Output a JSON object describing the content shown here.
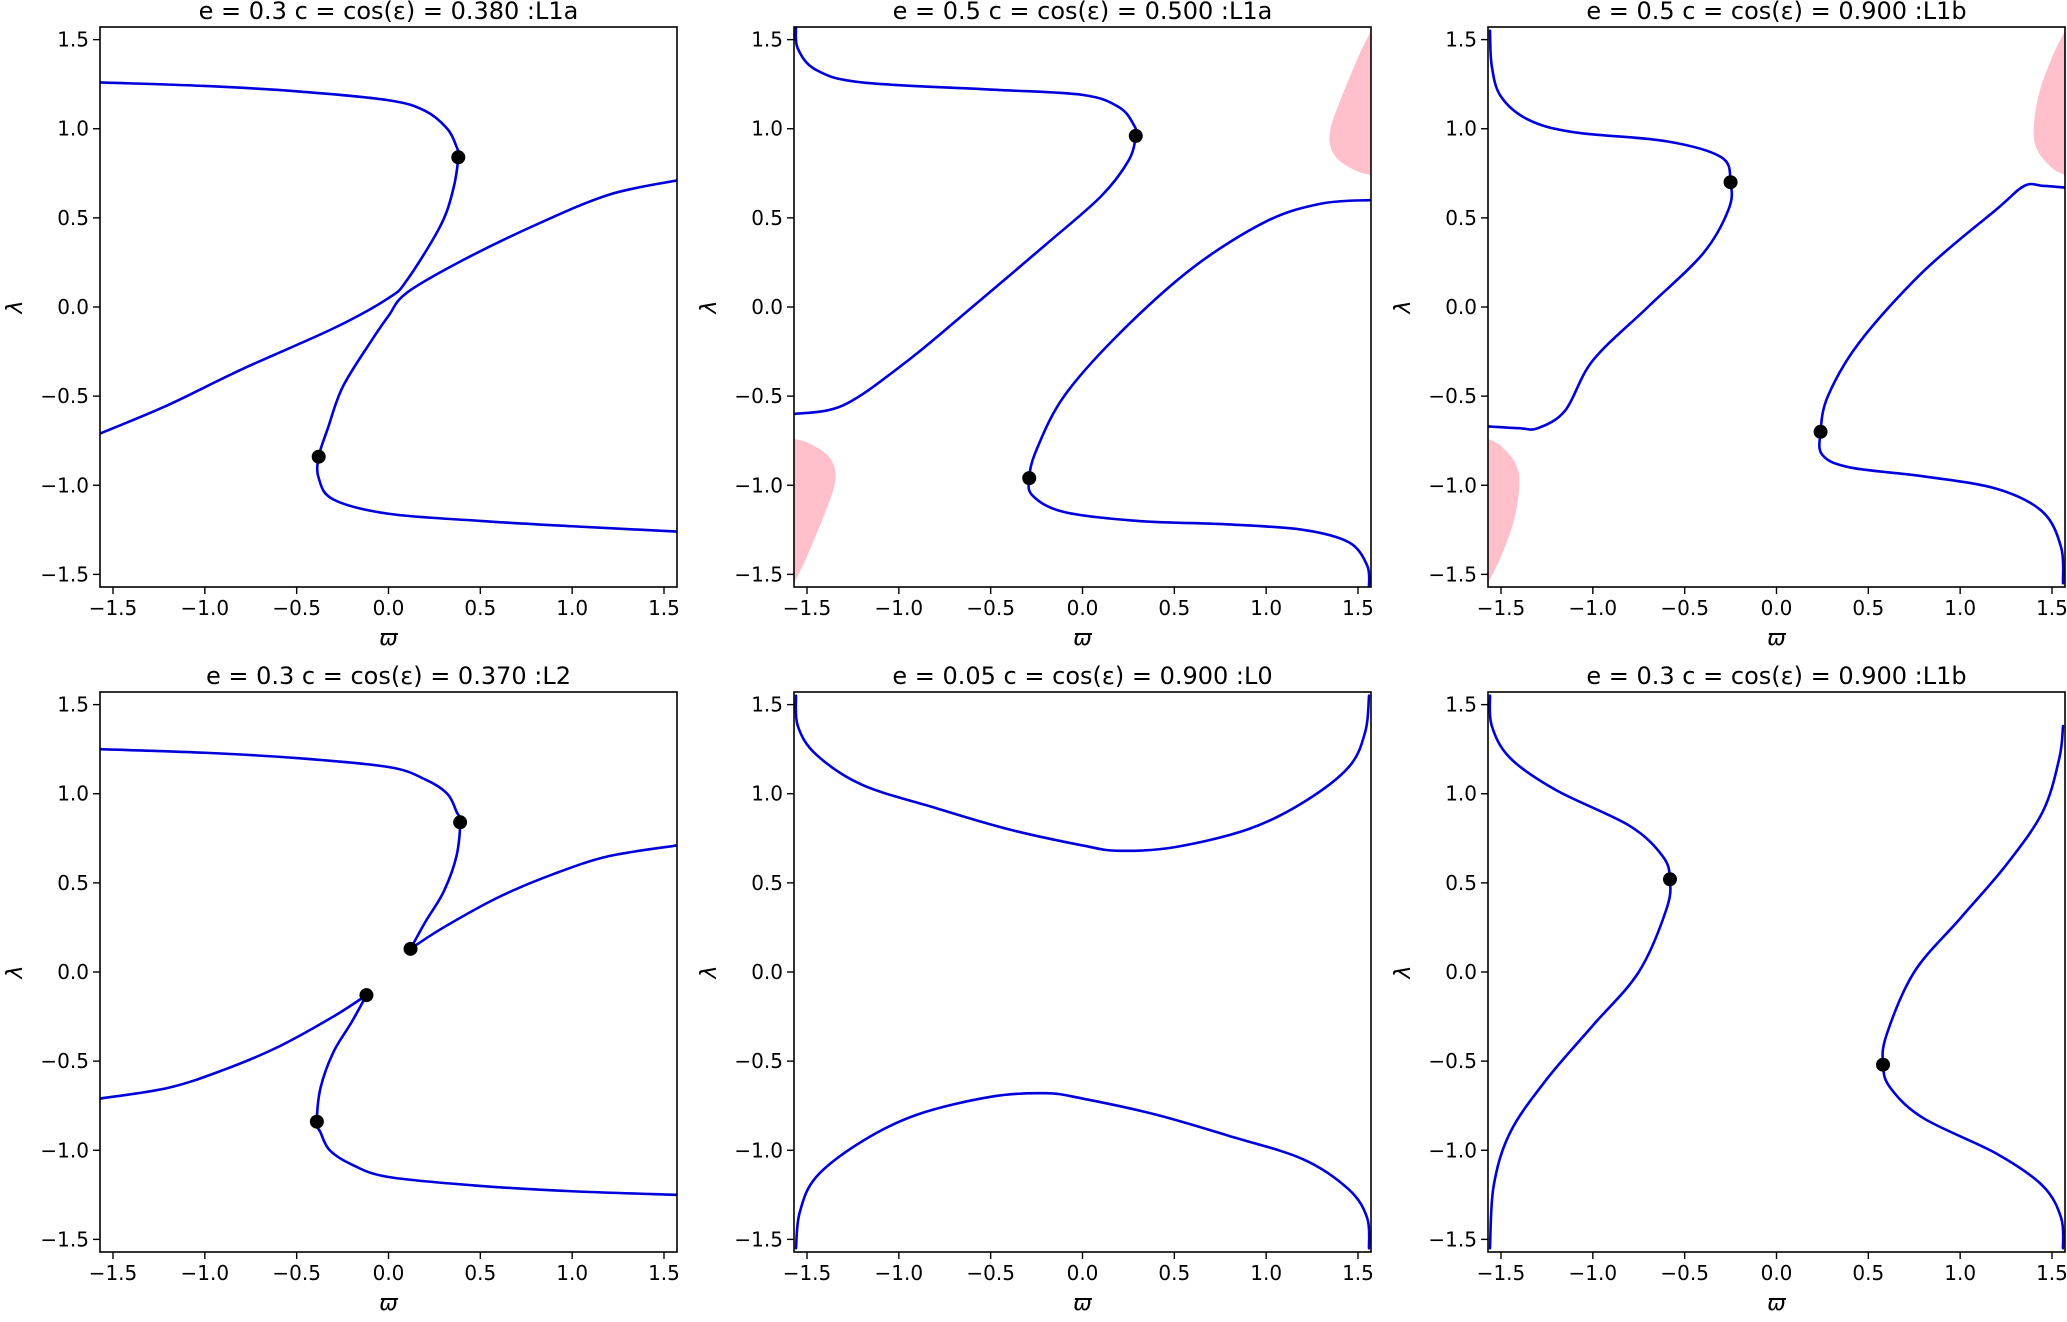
{
  "chart_data": [
    {
      "type": "line",
      "title": "e = 0.3  c = cos(ε) = 0.380 :L1a",
      "xlabel": "ϖ",
      "ylabel": "λ",
      "xlim": [
        -1.5708,
        1.5708
      ],
      "ylim": [
        -1.5708,
        1.5708
      ],
      "xticks": [
        -1.5,
        -1.0,
        -0.5,
        0.0,
        0.5,
        1.0,
        1.5
      ],
      "yticks": [
        -1.5,
        -1.0,
        -0.5,
        0.0,
        0.5,
        1.0,
        1.5
      ],
      "xtick_labels": [
        "−1.5",
        "−1.0",
        "−0.5",
        "0.0",
        "0.5",
        "1.0",
        "1.5"
      ],
      "ytick_labels": [
        "−1.5",
        "−1.0",
        "−0.5",
        "0.0",
        "0.5",
        "1.0",
        "1.5"
      ],
      "grid": false,
      "series": [
        {
          "color": "#0000dd",
          "x": [
            -1.5708,
            -1.0,
            -0.5,
            0.0,
            0.2,
            0.32,
            0.37,
            0.38,
            0.35,
            0.28,
            0.1,
            0.0,
            -0.3,
            -0.8,
            -1.2,
            -1.5708
          ],
          "y": [
            1.26,
            1.24,
            1.21,
            1.16,
            1.1,
            1.0,
            0.9,
            0.84,
            0.65,
            0.45,
            0.15,
            0.05,
            -0.12,
            -0.35,
            -0.55,
            -0.71
          ]
        },
        {
          "color": "#0000dd",
          "x": [
            1.5708,
            1.2,
            0.8,
            0.4,
            0.1,
            0.0,
            -0.1,
            -0.25,
            -0.33,
            -0.38,
            -0.38,
            -0.3,
            0.0,
            0.5,
            1.0,
            1.5708
          ],
          "y": [
            0.71,
            0.63,
            0.46,
            0.26,
            0.08,
            -0.05,
            -0.2,
            -0.45,
            -0.68,
            -0.84,
            -0.96,
            -1.08,
            -1.16,
            -1.2,
            -1.23,
            -1.26
          ]
        }
      ],
      "points": [
        {
          "x": 0.38,
          "y": 0.84
        },
        {
          "x": -0.38,
          "y": -0.84
        }
      ],
      "regions": []
    },
    {
      "type": "line",
      "title": "e = 0.5  c = cos(ε) = 0.500 :L1a",
      "xlabel": "ϖ",
      "ylabel": "λ",
      "xlim": [
        -1.5708,
        1.5708
      ],
      "ylim": [
        -1.5708,
        1.5708
      ],
      "xticks": [
        -1.5,
        -1.0,
        -0.5,
        0.0,
        0.5,
        1.0,
        1.5
      ],
      "yticks": [
        -1.5,
        -1.0,
        -0.5,
        0.0,
        0.5,
        1.0,
        1.5
      ],
      "xtick_labels": [
        "−1.5",
        "−1.0",
        "−0.5",
        "0.0",
        "0.5",
        "1.0",
        "1.5"
      ],
      "ytick_labels": [
        "−1.5",
        "−1.0",
        "−0.5",
        "0.0",
        "0.5",
        "1.0",
        "1.5"
      ],
      "grid": false,
      "series": [
        {
          "color": "#0000dd",
          "x": [
            -1.56,
            -1.55,
            -1.45,
            -1.2,
            -0.5,
            0.0,
            0.2,
            0.28,
            0.29,
            0.25,
            0.1,
            -0.2,
            -0.6,
            -0.95,
            -1.3,
            -1.5708
          ],
          "y": [
            1.57,
            1.45,
            1.33,
            1.26,
            1.22,
            1.19,
            1.12,
            1.02,
            0.96,
            0.82,
            0.62,
            0.35,
            0.0,
            -0.3,
            -0.55,
            -0.6
          ]
        },
        {
          "color": "#0000dd",
          "x": [
            1.5708,
            1.3,
            1.0,
            0.6,
            0.2,
            -0.1,
            -0.25,
            -0.29,
            -0.27,
            -0.1,
            0.3,
            0.8,
            1.2,
            1.45,
            1.55,
            1.56
          ],
          "y": [
            0.6,
            0.58,
            0.48,
            0.22,
            -0.15,
            -0.5,
            -0.8,
            -0.96,
            -1.06,
            -1.15,
            -1.2,
            -1.22,
            -1.25,
            -1.32,
            -1.45,
            -1.57
          ]
        }
      ],
      "points": [
        {
          "x": 0.29,
          "y": 0.96
        },
        {
          "x": -0.29,
          "y": -0.96
        }
      ],
      "regions": [
        {
          "color": "#ffc0cb",
          "x": [
            1.5708,
            1.5,
            1.4,
            1.35,
            1.35,
            1.4,
            1.5,
            1.5708
          ],
          "y": [
            1.55,
            1.4,
            1.15,
            1.0,
            0.9,
            0.82,
            0.76,
            0.74
          ]
        },
        {
          "color": "#ffc0cb",
          "x": [
            -1.5708,
            -1.5,
            -1.4,
            -1.35,
            -1.35,
            -1.4,
            -1.5,
            -1.5708
          ],
          "y": [
            -1.55,
            -1.4,
            -1.15,
            -1.0,
            -0.9,
            -0.82,
            -0.76,
            -0.74
          ]
        }
      ]
    },
    {
      "type": "line",
      "title": "e = 0.5  c = cos(ε) = 0.900 :L1b",
      "xlabel": "ϖ",
      "ylabel": "λ",
      "xlim": [
        -1.5708,
        1.5708
      ],
      "ylim": [
        -1.5708,
        1.5708
      ],
      "xticks": [
        -1.5,
        -1.0,
        -0.5,
        0.0,
        0.5,
        1.0,
        1.5
      ],
      "yticks": [
        -1.5,
        -1.0,
        -0.5,
        0.0,
        0.5,
        1.0,
        1.5
      ],
      "xtick_labels": [
        "−1.5",
        "−1.0",
        "−0.5",
        "0.0",
        "0.5",
        "1.0",
        "1.5"
      ],
      "ytick_labels": [
        "−1.5",
        "−1.0",
        "−0.5",
        "0.0",
        "0.5",
        "1.0",
        "1.5"
      ],
      "grid": false,
      "series": [
        {
          "color": "#0000dd",
          "x": [
            -1.56,
            -1.55,
            -1.5,
            -1.35,
            -1.1,
            -0.6,
            -0.3,
            -0.25,
            -0.26,
            -0.4,
            -0.7,
            -1.0,
            -1.15,
            -1.3,
            -1.4,
            -1.5708
          ],
          "y": [
            1.55,
            1.35,
            1.18,
            1.05,
            0.98,
            0.93,
            0.84,
            0.7,
            0.55,
            0.3,
            0.0,
            -0.3,
            -0.58,
            -0.68,
            -0.68,
            -0.67
          ]
        },
        {
          "color": "#0000dd",
          "x": [
            1.5708,
            1.45,
            1.35,
            1.2,
            0.8,
            0.45,
            0.28,
            0.24,
            0.25,
            0.4,
            0.8,
            1.2,
            1.45,
            1.55,
            1.56
          ],
          "y": [
            0.67,
            0.68,
            0.68,
            0.55,
            0.2,
            -0.2,
            -0.5,
            -0.7,
            -0.83,
            -0.9,
            -0.95,
            -1.02,
            -1.15,
            -1.35,
            -1.55
          ]
        }
      ],
      "points": [
        {
          "x": -0.25,
          "y": 0.7
        },
        {
          "x": 0.24,
          "y": -0.7
        }
      ],
      "regions": [
        {
          "color": "#ffc0cb",
          "x": [
            1.5708,
            1.5,
            1.43,
            1.4,
            1.42,
            1.5,
            1.5708
          ],
          "y": [
            1.55,
            1.4,
            1.2,
            1.0,
            0.88,
            0.78,
            0.74
          ]
        },
        {
          "color": "#ffc0cb",
          "x": [
            -1.5708,
            -1.5,
            -1.43,
            -1.4,
            -1.42,
            -1.5,
            -1.5708
          ],
          "y": [
            -1.55,
            -1.4,
            -1.2,
            -1.0,
            -0.88,
            -0.78,
            -0.74
          ]
        }
      ]
    },
    {
      "type": "line",
      "title": "e = 0.3  c = cos(ε) = 0.370 :L2",
      "xlabel": "ϖ",
      "ylabel": "λ",
      "xlim": [
        -1.5708,
        1.5708
      ],
      "ylim": [
        -1.5708,
        1.5708
      ],
      "xticks": [
        -1.5,
        -1.0,
        -0.5,
        0.0,
        0.5,
        1.0,
        1.5
      ],
      "yticks": [
        -1.5,
        -1.0,
        -0.5,
        0.0,
        0.5,
        1.0,
        1.5
      ],
      "xtick_labels": [
        "−1.5",
        "−1.0",
        "−0.5",
        "0.0",
        "0.5",
        "1.0",
        "1.5"
      ],
      "ytick_labels": [
        "−1.5",
        "−1.0",
        "−0.5",
        "0.0",
        "0.5",
        "1.0",
        "1.5"
      ],
      "grid": false,
      "series": [
        {
          "color": "#0000dd",
          "x": [
            -1.5708,
            -1.0,
            -0.5,
            0.0,
            0.2,
            0.32,
            0.37,
            0.39,
            0.37,
            0.3,
            0.2,
            0.12
          ],
          "y": [
            1.25,
            1.23,
            1.2,
            1.15,
            1.08,
            1.0,
            0.9,
            0.84,
            0.65,
            0.45,
            0.28,
            0.13
          ]
        },
        {
          "color": "#0000dd",
          "x": [
            0.12,
            0.3,
            0.6,
            0.9,
            1.2,
            1.5708
          ],
          "y": [
            0.13,
            0.25,
            0.42,
            0.55,
            0.65,
            0.71
          ]
        },
        {
          "color": "#0000dd",
          "x": [
            -1.5708,
            -1.2,
            -0.9,
            -0.6,
            -0.3,
            -0.12
          ],
          "y": [
            -0.71,
            -0.65,
            -0.55,
            -0.42,
            -0.25,
            -0.13
          ]
        },
        {
          "color": "#0000dd",
          "x": [
            -0.12,
            -0.2,
            -0.3,
            -0.37,
            -0.39,
            -0.37,
            -0.32,
            -0.2,
            0.0,
            0.5,
            1.0,
            1.5708
          ],
          "y": [
            -0.13,
            -0.28,
            -0.45,
            -0.65,
            -0.84,
            -0.9,
            -1.0,
            -1.08,
            -1.15,
            -1.2,
            -1.23,
            -1.25
          ]
        }
      ],
      "points": [
        {
          "x": 0.39,
          "y": 0.84
        },
        {
          "x": 0.12,
          "y": 0.13
        },
        {
          "x": -0.12,
          "y": -0.13
        },
        {
          "x": -0.39,
          "y": -0.84
        }
      ],
      "regions": []
    },
    {
      "type": "line",
      "title": "e = 0.05  c = cos(ε) = 0.900 :L0",
      "xlabel": "ϖ",
      "ylabel": "λ",
      "xlim": [
        -1.5708,
        1.5708
      ],
      "ylim": [
        -1.5708,
        1.5708
      ],
      "xticks": [
        -1.5,
        -1.0,
        -0.5,
        0.0,
        0.5,
        1.0,
        1.5
      ],
      "yticks": [
        -1.5,
        -1.0,
        -0.5,
        0.0,
        0.5,
        1.0,
        1.5
      ],
      "xtick_labels": [
        "−1.5",
        "−1.0",
        "−0.5",
        "0.0",
        "0.5",
        "1.0",
        "1.5"
      ],
      "ytick_labels": [
        "−1.5",
        "−1.0",
        "−0.5",
        "0.0",
        "0.5",
        "1.0",
        "1.5"
      ],
      "grid": false,
      "series": [
        {
          "color": "#0000dd",
          "x": [
            -1.56,
            -1.55,
            -1.45,
            -1.2,
            -0.8,
            -0.4,
            0.0,
            0.2,
            0.5,
            0.9,
            1.2,
            1.45,
            1.54,
            1.56
          ],
          "y": [
            1.55,
            1.38,
            1.22,
            1.05,
            0.92,
            0.8,
            0.71,
            0.68,
            0.7,
            0.8,
            0.95,
            1.15,
            1.35,
            1.55
          ]
        },
        {
          "color": "#0000dd",
          "x": [
            -1.56,
            -1.54,
            -1.45,
            -1.2,
            -0.9,
            -0.5,
            -0.2,
            0.0,
            0.4,
            0.8,
            1.2,
            1.45,
            1.55,
            1.56
          ],
          "y": [
            -1.55,
            -1.35,
            -1.15,
            -0.95,
            -0.8,
            -0.7,
            -0.68,
            -0.71,
            -0.8,
            -0.92,
            -1.05,
            -1.22,
            -1.38,
            -1.55
          ]
        }
      ],
      "points": [],
      "regions": []
    },
    {
      "type": "line",
      "title": "e = 0.3  c = cos(ε) = 0.900 :L1b",
      "xlabel": "ϖ",
      "ylabel": "λ",
      "xlim": [
        -1.5708,
        1.5708
      ],
      "ylim": [
        -1.5708,
        1.5708
      ],
      "xticks": [
        -1.5,
        -1.0,
        -0.5,
        0.0,
        0.5,
        1.0,
        1.5
      ],
      "yticks": [
        -1.5,
        -1.0,
        -0.5,
        0.0,
        0.5,
        1.0,
        1.5
      ],
      "xtick_labels": [
        "−1.5",
        "−1.0",
        "−0.5",
        "0.0",
        "0.5",
        "1.0",
        "1.5"
      ],
      "ytick_labels": [
        "−1.5",
        "−1.0",
        "−0.5",
        "0.0",
        "0.5",
        "1.0",
        "1.5"
      ],
      "grid": false,
      "series": [
        {
          "color": "#0000dd",
          "x": [
            -1.56,
            -1.55,
            -1.45,
            -1.2,
            -0.8,
            -0.62,
            -0.58,
            -0.6,
            -0.75,
            -1.0,
            -1.25,
            -1.45,
            -1.54,
            -1.56
          ],
          "y": [
            1.55,
            1.38,
            1.2,
            1.02,
            0.82,
            0.65,
            0.52,
            0.35,
            0.0,
            -0.3,
            -0.6,
            -0.9,
            -1.2,
            -1.55
          ]
        },
        {
          "color": "#0000dd",
          "x": [
            1.56,
            1.54,
            1.45,
            1.25,
            1.0,
            0.75,
            0.6,
            0.58,
            0.62,
            0.8,
            1.2,
            1.45,
            1.55,
            1.56
          ],
          "y": [
            1.38,
            1.2,
            0.9,
            0.6,
            0.3,
            0.0,
            -0.35,
            -0.52,
            -0.65,
            -0.82,
            -1.02,
            -1.2,
            -1.38,
            -1.55
          ]
        }
      ],
      "points": [
        {
          "x": -0.58,
          "y": 0.52
        },
        {
          "x": 0.58,
          "y": -0.52
        }
      ],
      "regions": []
    }
  ]
}
